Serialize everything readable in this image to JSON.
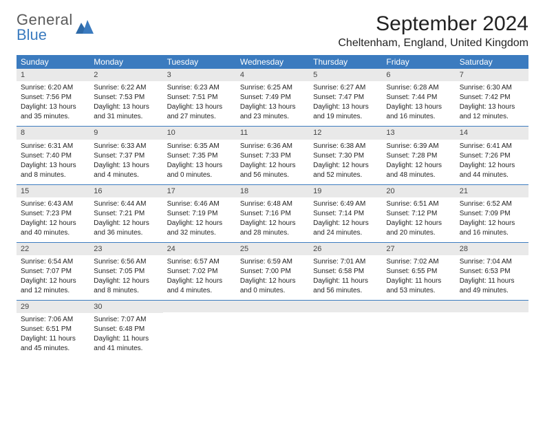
{
  "logo": {
    "top": "General",
    "bottom": "Blue"
  },
  "title": "September 2024",
  "location": "Cheltenham, England, United Kingdom",
  "colors": {
    "header_bg": "#3b7bbf",
    "header_text": "#ffffff",
    "daynum_bg": "#e9e9e9",
    "text": "#222222",
    "logo_gray": "#5a5a5a",
    "logo_blue": "#3b7bbf",
    "page_bg": "#ffffff",
    "week_divider": "#3b7bbf"
  },
  "day_names": [
    "Sunday",
    "Monday",
    "Tuesday",
    "Wednesday",
    "Thursday",
    "Friday",
    "Saturday"
  ],
  "days": [
    {
      "n": 1,
      "sr": "6:20 AM",
      "ss": "7:56 PM",
      "dl1": "Daylight: 13 hours",
      "dl2": "and 35 minutes."
    },
    {
      "n": 2,
      "sr": "6:22 AM",
      "ss": "7:53 PM",
      "dl1": "Daylight: 13 hours",
      "dl2": "and 31 minutes."
    },
    {
      "n": 3,
      "sr": "6:23 AM",
      "ss": "7:51 PM",
      "dl1": "Daylight: 13 hours",
      "dl2": "and 27 minutes."
    },
    {
      "n": 4,
      "sr": "6:25 AM",
      "ss": "7:49 PM",
      "dl1": "Daylight: 13 hours",
      "dl2": "and 23 minutes."
    },
    {
      "n": 5,
      "sr": "6:27 AM",
      "ss": "7:47 PM",
      "dl1": "Daylight: 13 hours",
      "dl2": "and 19 minutes."
    },
    {
      "n": 6,
      "sr": "6:28 AM",
      "ss": "7:44 PM",
      "dl1": "Daylight: 13 hours",
      "dl2": "and 16 minutes."
    },
    {
      "n": 7,
      "sr": "6:30 AM",
      "ss": "7:42 PM",
      "dl1": "Daylight: 13 hours",
      "dl2": "and 12 minutes."
    },
    {
      "n": 8,
      "sr": "6:31 AM",
      "ss": "7:40 PM",
      "dl1": "Daylight: 13 hours",
      "dl2": "and 8 minutes."
    },
    {
      "n": 9,
      "sr": "6:33 AM",
      "ss": "7:37 PM",
      "dl1": "Daylight: 13 hours",
      "dl2": "and 4 minutes."
    },
    {
      "n": 10,
      "sr": "6:35 AM",
      "ss": "7:35 PM",
      "dl1": "Daylight: 13 hours",
      "dl2": "and 0 minutes."
    },
    {
      "n": 11,
      "sr": "6:36 AM",
      "ss": "7:33 PM",
      "dl1": "Daylight: 12 hours",
      "dl2": "and 56 minutes."
    },
    {
      "n": 12,
      "sr": "6:38 AM",
      "ss": "7:30 PM",
      "dl1": "Daylight: 12 hours",
      "dl2": "and 52 minutes."
    },
    {
      "n": 13,
      "sr": "6:39 AM",
      "ss": "7:28 PM",
      "dl1": "Daylight: 12 hours",
      "dl2": "and 48 minutes."
    },
    {
      "n": 14,
      "sr": "6:41 AM",
      "ss": "7:26 PM",
      "dl1": "Daylight: 12 hours",
      "dl2": "and 44 minutes."
    },
    {
      "n": 15,
      "sr": "6:43 AM",
      "ss": "7:23 PM",
      "dl1": "Daylight: 12 hours",
      "dl2": "and 40 minutes."
    },
    {
      "n": 16,
      "sr": "6:44 AM",
      "ss": "7:21 PM",
      "dl1": "Daylight: 12 hours",
      "dl2": "and 36 minutes."
    },
    {
      "n": 17,
      "sr": "6:46 AM",
      "ss": "7:19 PM",
      "dl1": "Daylight: 12 hours",
      "dl2": "and 32 minutes."
    },
    {
      "n": 18,
      "sr": "6:48 AM",
      "ss": "7:16 PM",
      "dl1": "Daylight: 12 hours",
      "dl2": "and 28 minutes."
    },
    {
      "n": 19,
      "sr": "6:49 AM",
      "ss": "7:14 PM",
      "dl1": "Daylight: 12 hours",
      "dl2": "and 24 minutes."
    },
    {
      "n": 20,
      "sr": "6:51 AM",
      "ss": "7:12 PM",
      "dl1": "Daylight: 12 hours",
      "dl2": "and 20 minutes."
    },
    {
      "n": 21,
      "sr": "6:52 AM",
      "ss": "7:09 PM",
      "dl1": "Daylight: 12 hours",
      "dl2": "and 16 minutes."
    },
    {
      "n": 22,
      "sr": "6:54 AM",
      "ss": "7:07 PM",
      "dl1": "Daylight: 12 hours",
      "dl2": "and 12 minutes."
    },
    {
      "n": 23,
      "sr": "6:56 AM",
      "ss": "7:05 PM",
      "dl1": "Daylight: 12 hours",
      "dl2": "and 8 minutes."
    },
    {
      "n": 24,
      "sr": "6:57 AM",
      "ss": "7:02 PM",
      "dl1": "Daylight: 12 hours",
      "dl2": "and 4 minutes."
    },
    {
      "n": 25,
      "sr": "6:59 AM",
      "ss": "7:00 PM",
      "dl1": "Daylight: 12 hours",
      "dl2": "and 0 minutes."
    },
    {
      "n": 26,
      "sr": "7:01 AM",
      "ss": "6:58 PM",
      "dl1": "Daylight: 11 hours",
      "dl2": "and 56 minutes."
    },
    {
      "n": 27,
      "sr": "7:02 AM",
      "ss": "6:55 PM",
      "dl1": "Daylight: 11 hours",
      "dl2": "and 53 minutes."
    },
    {
      "n": 28,
      "sr": "7:04 AM",
      "ss": "6:53 PM",
      "dl1": "Daylight: 11 hours",
      "dl2": "and 49 minutes."
    },
    {
      "n": 29,
      "sr": "7:06 AM",
      "ss": "6:51 PM",
      "dl1": "Daylight: 11 hours",
      "dl2": "and 45 minutes."
    },
    {
      "n": 30,
      "sr": "7:07 AM",
      "ss": "6:48 PM",
      "dl1": "Daylight: 11 hours",
      "dl2": "and 41 minutes."
    }
  ]
}
